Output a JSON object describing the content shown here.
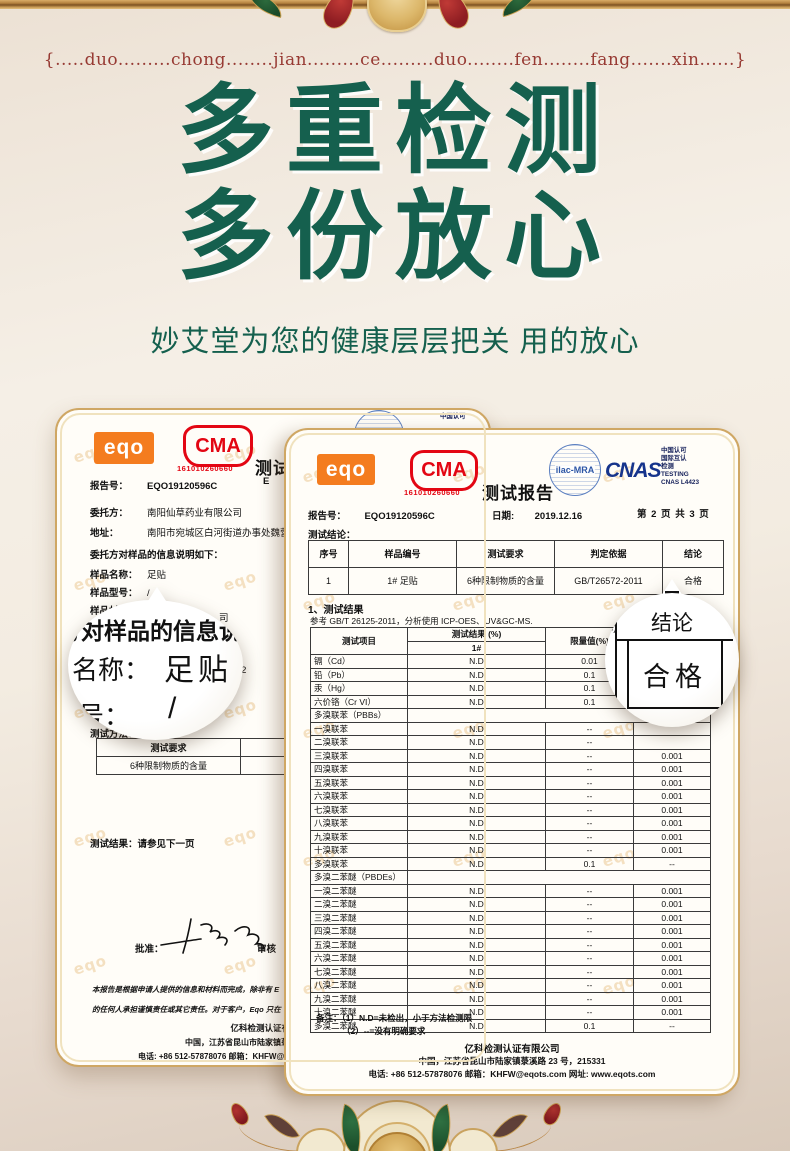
{
  "header": {
    "pinyin": "{.....duo.........chong........jian.........ce.........duo........fen........fang.......xin......}",
    "title_line1": "多重检测",
    "title_line2": "多份放心",
    "subtitle": "妙艾堂为您的健康层层把关 用的放心"
  },
  "watermark": "eqo",
  "company_footer": {
    "line1": "亿科检测认证有限公司",
    "line2": "中国，江苏省昆山市陆家镇菉溪路 23 号，215331",
    "line3": "电话: +86 512-57878076    邮箱：KHFW@eqots.com    网址: www.eqots.com"
  },
  "left_cert": {
    "eqo_logo": "eqo",
    "cma_text": "CMA",
    "cma_number": "161010260660",
    "report_title_partial": "测试",
    "cnas_partial": "中国认可",
    "report_no_label": "报告号：",
    "report_no": "EQO19120596C",
    "partial_e": "E",
    "client_label": "委托方：",
    "client": "南阳仙草药业有限公司",
    "address_label": "地址：",
    "address": "南阳市宛城区白河街道办事处魏营",
    "info_heading": "委托方对样品的信息说明如下：",
    "info_rows": [
      {
        "label": "样品名称：",
        "value": "足贴"
      },
      {
        "label": "样品型号：",
        "value": "/"
      },
      {
        "label": "样品材质：",
        "value": "/"
      },
      {
        "label": "样品描述",
        "value": ""
      }
    ],
    "fragment_company": "司",
    "fragment_address": "办事处魏营",
    "fragment_period": "至  2",
    "method_label": "测试方法：",
    "method_value": "/",
    "mini_table": {
      "header": "测试要求",
      "row": "6种限制物质的含量"
    },
    "result_note": "测试结果：请参见下一页",
    "approve_label": "批准：",
    "review_label": "审核",
    "disclaimer_line1": "本报告是根据申请人提供的信息和材料而完成，除非有 E",
    "disclaimer_line2": "的任何人承担谨慎责任或其它责任。对于客户，Eqo 只在"
  },
  "right_cert": {
    "eqo_logo": "eqo",
    "cma_text": "CMA",
    "cma_number": "161010260660",
    "report_title": "测试报告",
    "ilac_text": "ilac-MRA",
    "cnas_text": "CNAS",
    "cnas_lines": [
      "中国认可",
      "国际互认",
      "检测",
      "TESTING",
      "CNAS L4423"
    ],
    "report_no_label": "报告号：",
    "report_no": "EQO19120596C",
    "date_label": "日期:",
    "date": "2019.12.16",
    "page_info": "第 2 页 共 3 页",
    "conclusion_heading": "测试结论：",
    "conclusion_table": {
      "headers": [
        "序号",
        "样品编号",
        "测试要求",
        "判定依据",
        "结论"
      ],
      "rows": [
        [
          "1",
          "1# 足贴",
          "6种限制物质的含量",
          "GB/T26572-2011",
          "合格"
        ]
      ]
    },
    "section1_heading": "1、测试结果",
    "reference_line": "参考 GB/T 26125-2011，分析使用 ICP-OES、UV&GC-MS.",
    "results_table": {
      "col_item": "测试项目",
      "col_result": "测试结果 (%)",
      "col_sample": "1#",
      "col_limit": "限量值(%)",
      "col_hidden": "",
      "rows": [
        [
          "镉（Cd）",
          "N.D",
          "0.01",
          ""
        ],
        [
          "铅（Pb）",
          "N.D",
          "0.1",
          ""
        ],
        [
          "汞（Hg）",
          "N.D",
          "0.1",
          ""
        ],
        [
          "六价铬（Cr VI）",
          "N.D",
          "0.1",
          ""
        ],
        [
          "多溴联苯（PBBs）",
          ""
        ],
        [
          "一溴联苯",
          "N.D",
          "--",
          ""
        ],
        [
          "二溴联苯",
          "N.D",
          "--",
          ""
        ],
        [
          "三溴联苯",
          "N.D",
          "--",
          "0.001"
        ],
        [
          "四溴联苯",
          "N.D",
          "--",
          "0.001"
        ],
        [
          "五溴联苯",
          "N.D",
          "--",
          "0.001"
        ],
        [
          "六溴联苯",
          "N.D",
          "--",
          "0.001"
        ],
        [
          "七溴联苯",
          "N.D",
          "--",
          "0.001"
        ],
        [
          "八溴联苯",
          "N.D",
          "--",
          "0.001"
        ],
        [
          "九溴联苯",
          "N.D",
          "--",
          "0.001"
        ],
        [
          "十溴联苯",
          "N.D",
          "--",
          "0.001"
        ],
        [
          "多溴联苯",
          "N.D",
          "0.1",
          "--"
        ],
        [
          "多溴二苯醚（PBDEs）",
          ""
        ],
        [
          "一溴二苯醚",
          "N.D",
          "--",
          "0.001"
        ],
        [
          "二溴二苯醚",
          "N.D",
          "--",
          "0.001"
        ],
        [
          "三溴二苯醚",
          "N.D",
          "--",
          "0.001"
        ],
        [
          "四溴二苯醚",
          "N.D",
          "--",
          "0.001"
        ],
        [
          "五溴二苯醚",
          "N.D",
          "--",
          "0.001"
        ],
        [
          "六溴二苯醚",
          "N.D",
          "--",
          "0.001"
        ],
        [
          "七溴二苯醚",
          "N.D",
          "--",
          "0.001"
        ],
        [
          "八溴二苯醚",
          "N.D",
          "--",
          "0.001"
        ],
        [
          "九溴二苯醚",
          "N.D",
          "--",
          "0.001"
        ],
        [
          "十溴二苯醚",
          "N.D",
          "--",
          "0.001"
        ],
        [
          "多溴二苯醚",
          "N.D",
          "0.1",
          "--"
        ]
      ]
    },
    "remark_line1": "备注：（1）N.D=未检出，小于方法检测限",
    "remark_line2": "（2）--=没有明确要求"
  },
  "left_bubble": {
    "line1": "方对样品的信息说",
    "name_label": "名称：",
    "name_value": "足贴",
    "model_label": "型号：",
    "model_value": "/"
  },
  "right_bubble": {
    "header": "结论",
    "value": "合格",
    "fragment": "(%)"
  }
}
